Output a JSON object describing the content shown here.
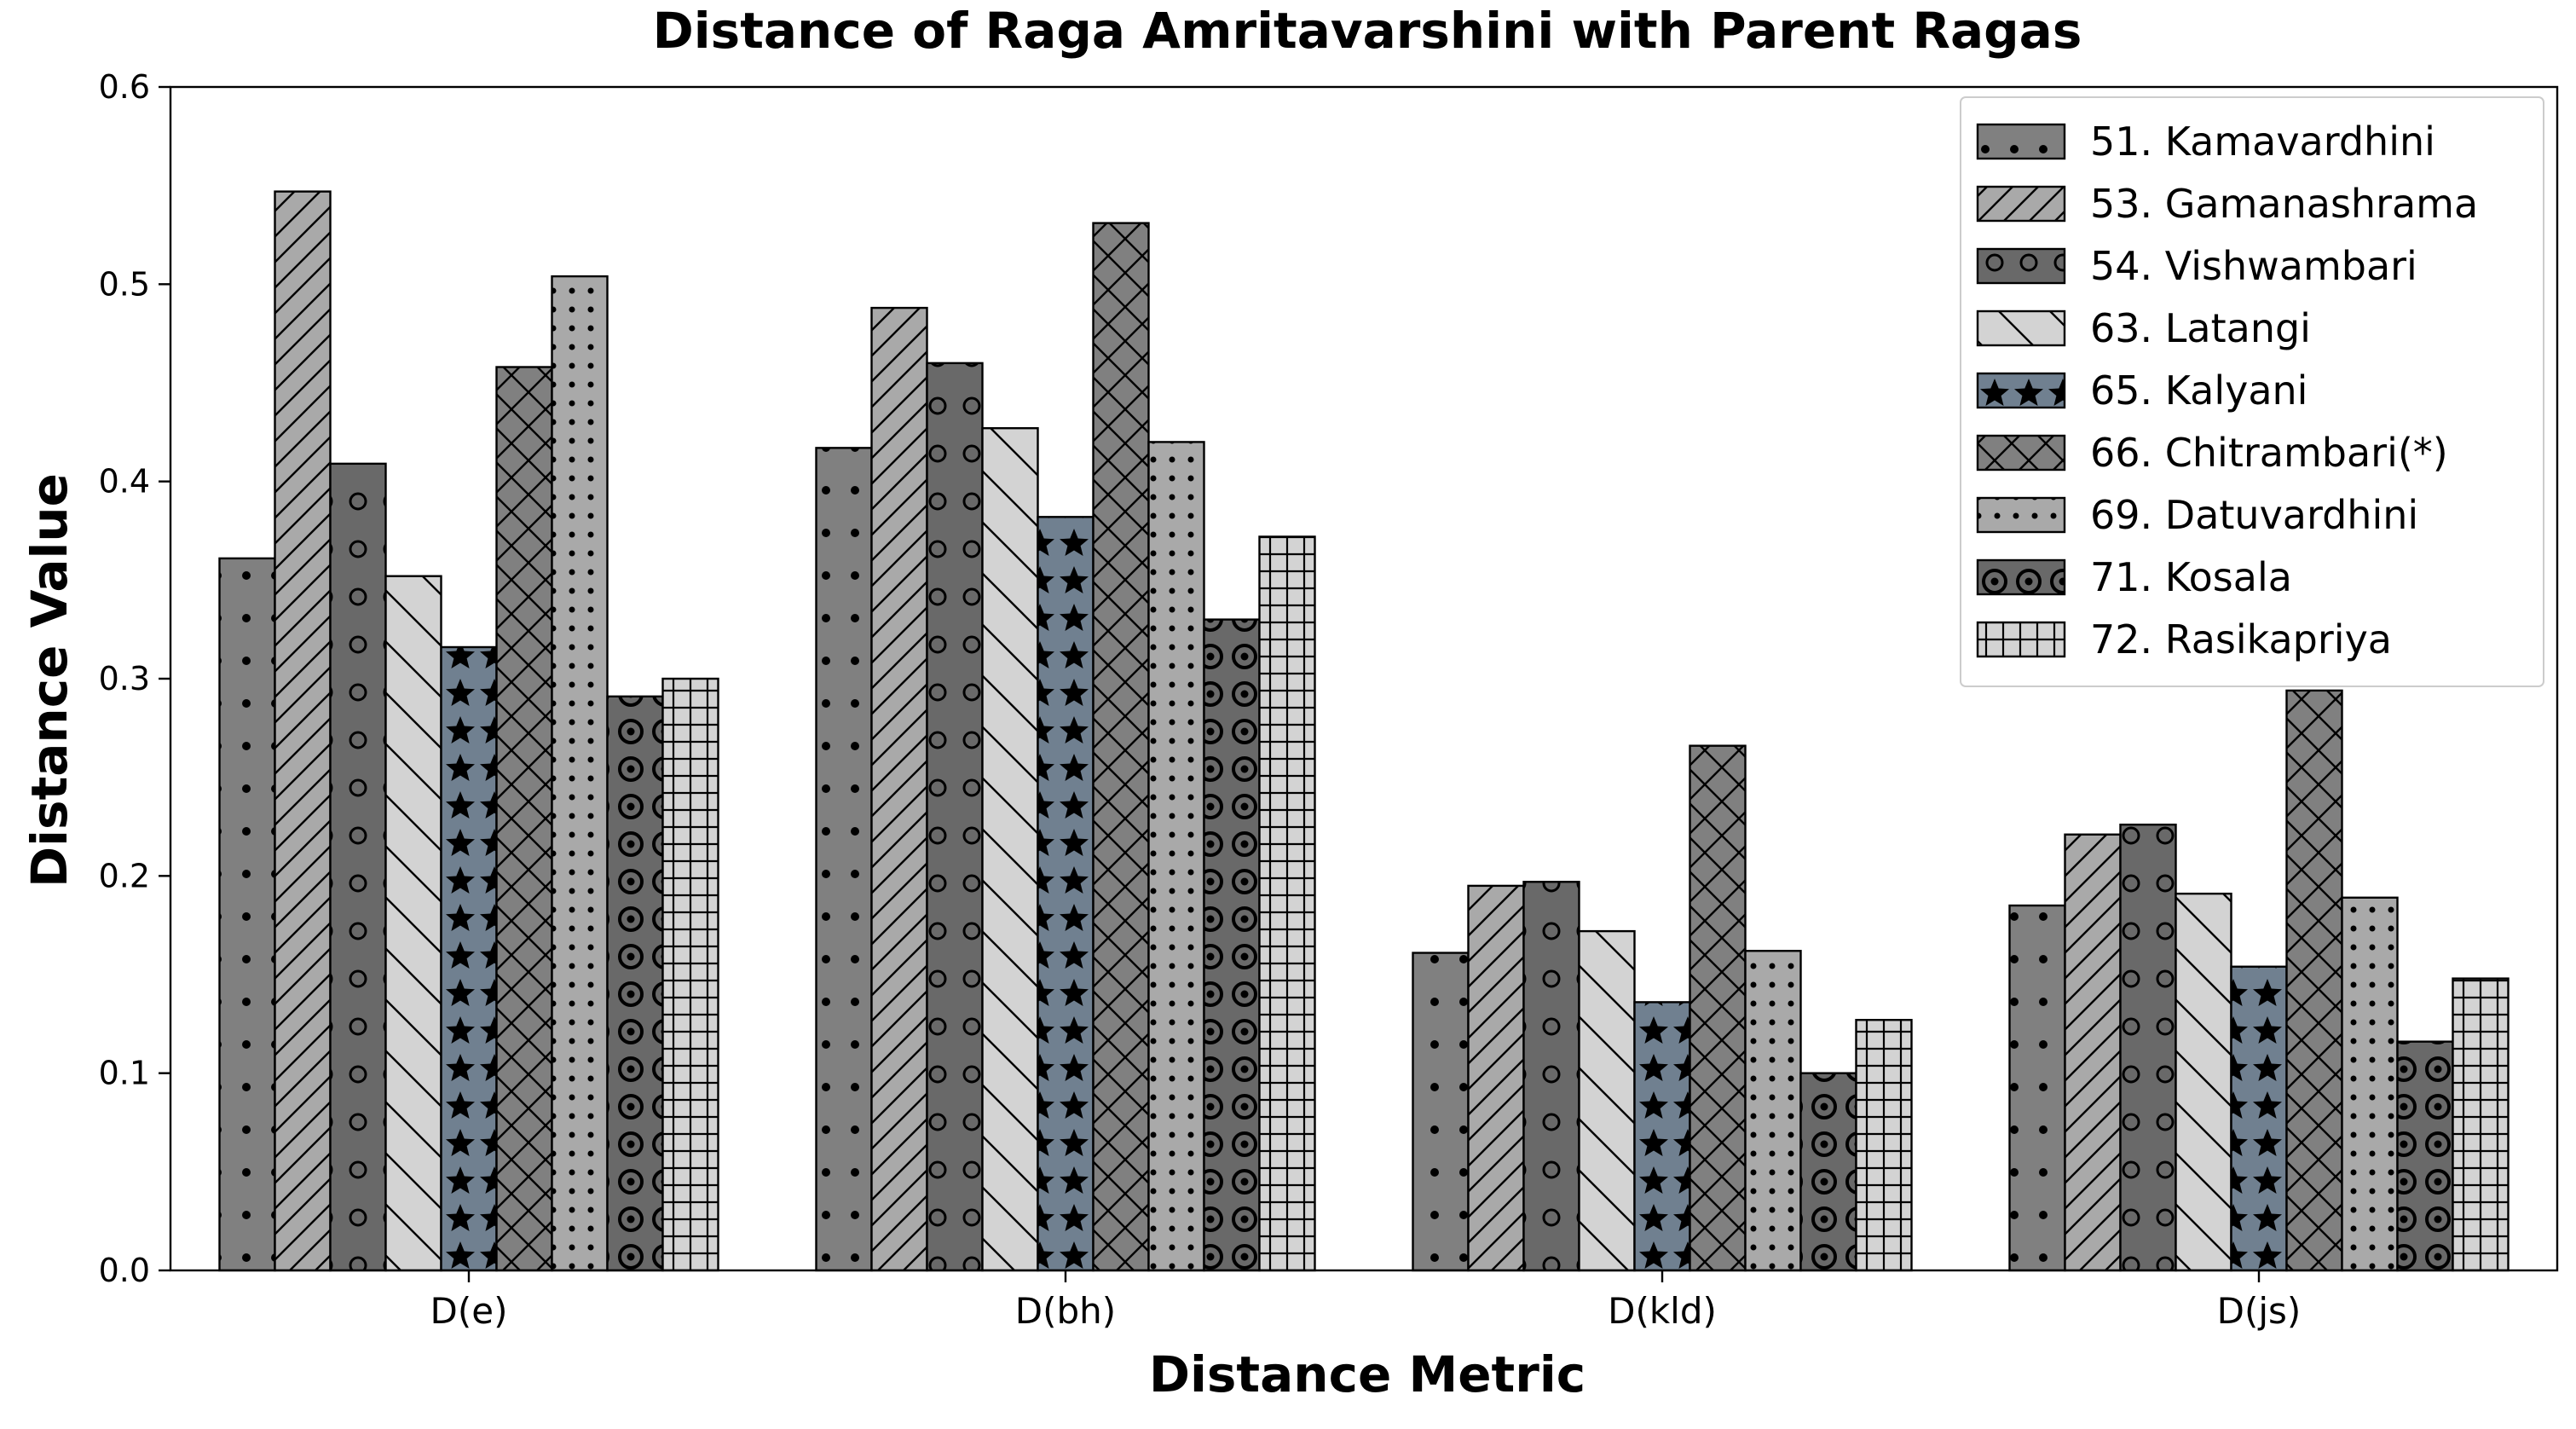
{
  "chart_data": {
    "type": "bar",
    "title": "Distance of Raga Amritavarshini with Parent Ragas",
    "xlabel": "Distance Metric",
    "ylabel": "Distance Value",
    "ylim": [
      0,
      0.6
    ],
    "yticks": [
      "0.0",
      "0.1",
      "0.2",
      "0.3",
      "0.4",
      "0.5",
      "0.6"
    ],
    "categories": [
      "D(e)",
      "D(bh)",
      "D(kld)",
      "D(js)"
    ],
    "legend_position": "top-right",
    "grid": false,
    "series": [
      {
        "name": "51. Kamavardhini",
        "color": "#808080",
        "pattern": "dots",
        "values": [
          0.361,
          0.417,
          0.161,
          0.185
        ]
      },
      {
        "name": "53. Gamanashrama",
        "color": "#a9a9a9",
        "pattern": "diagonal",
        "values": [
          0.547,
          0.488,
          0.195,
          0.221
        ]
      },
      {
        "name": "54. Vishwambari",
        "color": "#696969",
        "pattern": "small-circles",
        "values": [
          0.409,
          0.46,
          0.197,
          0.226
        ]
      },
      {
        "name": "63. Latangi",
        "color": "#d3d3d3",
        "pattern": "backslash",
        "values": [
          0.352,
          0.427,
          0.172,
          0.191
        ]
      },
      {
        "name": "65. Kalyani",
        "color": "#708090",
        "pattern": "stars",
        "values": [
          0.316,
          0.382,
          0.136,
          0.154
        ]
      },
      {
        "name": "66. Chitrambari(*)",
        "color": "#808080",
        "pattern": "crosshatch",
        "values": [
          0.458,
          0.531,
          0.266,
          0.294
        ]
      },
      {
        "name": "69. Datuvardhini",
        "color": "#a9a9a9",
        "pattern": "fine-dots",
        "values": [
          0.504,
          0.42,
          0.162,
          0.189
        ]
      },
      {
        "name": "71. Kosala",
        "color": "#696969",
        "pattern": "rings",
        "values": [
          0.291,
          0.33,
          0.1,
          0.116
        ]
      },
      {
        "name": "72. Rasikapriya",
        "color": "#d3d3d3",
        "pattern": "grid",
        "values": [
          0.3,
          0.372,
          0.127,
          0.148
        ]
      }
    ]
  }
}
